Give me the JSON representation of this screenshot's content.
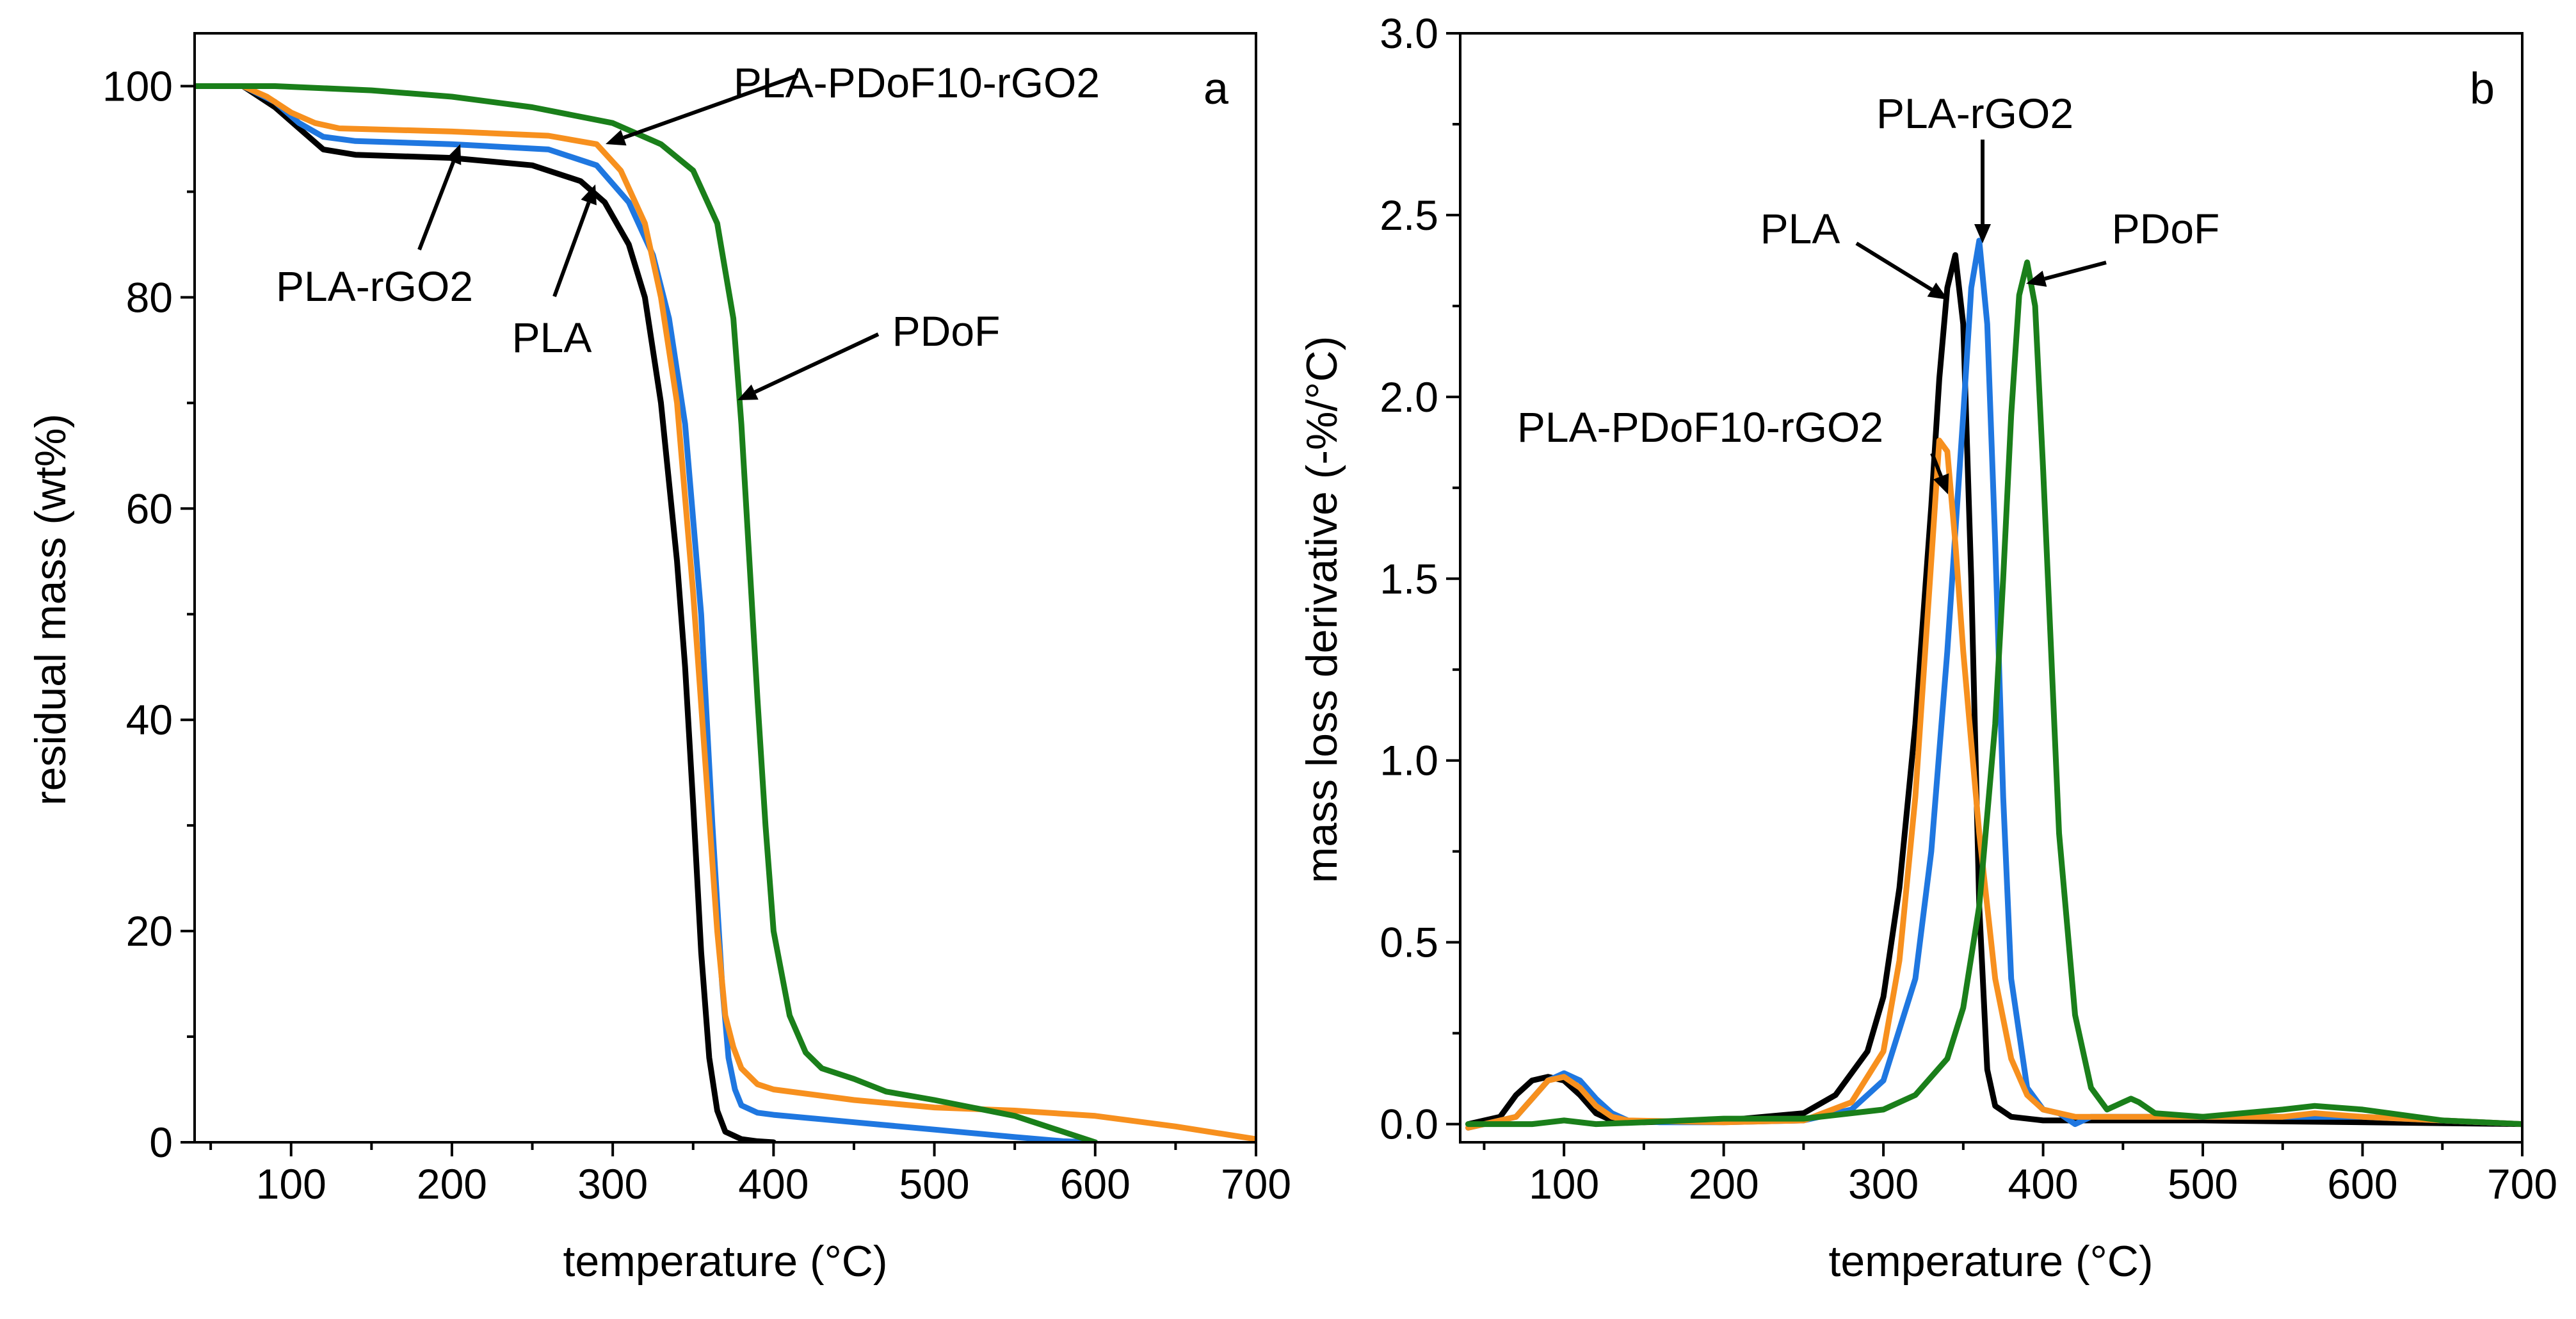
{
  "colors": {
    "PLA": "#000000",
    "PLA-rGO2": "#1f77e0",
    "PLA-PDoF10-rGO2": "#f7901e",
    "PDoF": "#1a7f1a"
  },
  "chart_data": [
    {
      "type": "line",
      "panel": "a",
      "title": "",
      "xlabel": "temperature (°C)",
      "ylabel": "residual mass (wt%)",
      "xlim": [
        40,
        700
      ],
      "ylim": [
        0,
        105
      ],
      "xticks": [
        100,
        200,
        300,
        400,
        500,
        600,
        700
      ],
      "yticks": [
        0,
        20,
        40,
        60,
        80,
        100
      ],
      "xtick_labels": [
        "100",
        "200",
        "300",
        "400",
        "500",
        "600",
        "700"
      ],
      "ytick_labels": [
        "0",
        "20",
        "40",
        "60",
        "80",
        "100"
      ],
      "series": [
        {
          "name": "PLA",
          "color": "#000000",
          "x": [
            40,
            70,
            90,
            105,
            120,
            140,
            200,
            250,
            280,
            295,
            310,
            320,
            330,
            340,
            345,
            350,
            355,
            360,
            365,
            370,
            380,
            390,
            400
          ],
          "y": [
            100,
            100,
            98,
            96,
            94,
            93.5,
            93.2,
            92.5,
            91,
            89,
            85,
            80,
            70,
            55,
            45,
            32,
            18,
            8,
            3,
            1,
            0.3,
            0.1,
            0
          ]
        },
        {
          "name": "PLA-rGO2",
          "color": "#1f77e0",
          "x": [
            40,
            70,
            90,
            105,
            120,
            140,
            200,
            260,
            290,
            310,
            325,
            335,
            345,
            355,
            362,
            368,
            372,
            376,
            380,
            390,
            400,
            450,
            500,
            550,
            580,
            600
          ],
          "y": [
            100,
            100,
            98.5,
            96.5,
            95.2,
            94.8,
            94.5,
            94,
            92.5,
            89,
            84,
            78,
            68,
            50,
            30,
            15,
            8,
            5,
            3.5,
            2.8,
            2.6,
            1.9,
            1.2,
            0.5,
            0.1,
            0
          ]
        },
        {
          "name": "PLA-PDoF10-rGO2",
          "color": "#f7901e",
          "x": [
            40,
            70,
            85,
            100,
            115,
            130,
            200,
            260,
            290,
            305,
            320,
            330,
            340,
            350,
            358,
            365,
            370,
            375,
            380,
            390,
            400,
            450,
            500,
            550,
            600,
            650,
            700
          ],
          "y": [
            100,
            100,
            99,
            97.5,
            96.5,
            96,
            95.7,
            95.3,
            94.5,
            92,
            87,
            80,
            70,
            52,
            35,
            20,
            12,
            9,
            7,
            5.5,
            5,
            4,
            3.3,
            3,
            2.5,
            1.5,
            0.3
          ]
        },
        {
          "name": "PDoF",
          "color": "#1a7f1a",
          "x": [
            40,
            90,
            150,
            200,
            250,
            300,
            330,
            350,
            365,
            375,
            380,
            385,
            390,
            395,
            400,
            410,
            420,
            430,
            450,
            470,
            500,
            550,
            580,
            600
          ],
          "y": [
            100,
            100,
            99.6,
            99,
            98,
            96.5,
            94.5,
            92,
            87,
            78,
            68,
            55,
            42,
            30,
            20,
            12,
            8.5,
            7,
            6,
            4.8,
            4,
            2.5,
            1,
            0
          ]
        }
      ],
      "annotations": [
        {
          "text": "PLA-PDoF10-rGO2",
          "x": 460,
          "y": 101.5
        },
        {
          "text": "PLA-rGO2",
          "x": 170,
          "y": 79
        },
        {
          "text": "PLA",
          "x": 320,
          "y": 76
        },
        {
          "text": "PDoF",
          "x": 555,
          "y": 76
        }
      ],
      "panel_letter": "a"
    },
    {
      "type": "line",
      "panel": "b",
      "title": "",
      "xlabel": "temperature (°C)",
      "ylabel": "mass loss derivative (-%/°C)",
      "xlim": [
        35,
        700
      ],
      "ylim": [
        -0.05,
        3.0
      ],
      "xticks": [
        100,
        200,
        300,
        400,
        500,
        600,
        700
      ],
      "yticks": [
        0.0,
        0.5,
        1.0,
        1.5,
        2.0,
        2.5,
        3.0
      ],
      "xtick_labels": [
        "100",
        "200",
        "300",
        "400",
        "500",
        "600",
        "700"
      ],
      "ytick_labels": [
        "0.0",
        "0.5",
        "1.0",
        "1.5",
        "2.0",
        "2.5",
        "3.0"
      ],
      "series": [
        {
          "name": "PLA",
          "color": "#000000",
          "x": [
            40,
            60,
            70,
            80,
            90,
            100,
            110,
            120,
            130,
            150,
            200,
            250,
            270,
            290,
            300,
            310,
            320,
            330,
            335,
            340,
            345,
            350,
            355,
            360,
            365,
            370,
            380,
            400,
            500,
            700
          ],
          "y": [
            0,
            0.02,
            0.08,
            0.12,
            0.13,
            0.12,
            0.08,
            0.03,
            0.01,
            0.005,
            0.01,
            0.03,
            0.08,
            0.2,
            0.35,
            0.65,
            1.1,
            1.7,
            2.05,
            2.3,
            2.39,
            2.2,
            1.5,
            0.6,
            0.15,
            0.05,
            0.02,
            0.01,
            0.01,
            0.0
          ]
        },
        {
          "name": "PLA-rGO2",
          "color": "#1f77e0",
          "x": [
            40,
            70,
            80,
            90,
            100,
            110,
            120,
            130,
            140,
            160,
            200,
            250,
            280,
            300,
            320,
            330,
            340,
            350,
            355,
            360,
            365,
            370,
            375,
            380,
            390,
            400,
            410,
            420,
            430,
            450,
            500,
            550,
            600,
            700
          ],
          "y": [
            -0.01,
            0.02,
            0.07,
            0.12,
            0.14,
            0.12,
            0.07,
            0.03,
            0.01,
            0.005,
            0.005,
            0.01,
            0.04,
            0.12,
            0.4,
            0.75,
            1.3,
            1.95,
            2.3,
            2.43,
            2.2,
            1.6,
            0.9,
            0.4,
            0.1,
            0.04,
            0.03,
            0.0,
            0.02,
            0.02,
            0.02,
            0.02,
            0.02,
            0.0
          ]
        },
        {
          "name": "PLA-PDoF10-rGO2",
          "color": "#f7901e",
          "x": [
            40,
            70,
            80,
            90,
            100,
            110,
            120,
            130,
            140,
            200,
            250,
            280,
            300,
            310,
            320,
            330,
            335,
            340,
            345,
            350,
            360,
            370,
            380,
            390,
            400,
            420,
            450,
            500,
            550,
            570,
            600,
            650,
            700
          ],
          "y": [
            -0.01,
            0.02,
            0.07,
            0.12,
            0.13,
            0.1,
            0.05,
            0.02,
            0.01,
            0.005,
            0.01,
            0.06,
            0.2,
            0.45,
            0.9,
            1.55,
            1.88,
            1.85,
            1.6,
            1.3,
            0.8,
            0.4,
            0.18,
            0.08,
            0.04,
            0.02,
            0.02,
            0.02,
            0.02,
            0.03,
            0.02,
            0.01,
            0.0
          ]
        },
        {
          "name": "PDoF",
          "color": "#1a7f1a",
          "x": [
            40,
            80,
            100,
            120,
            150,
            200,
            250,
            300,
            320,
            340,
            350,
            360,
            370,
            375,
            380,
            385,
            390,
            395,
            400,
            405,
            410,
            420,
            430,
            440,
            450,
            455,
            460,
            470,
            500,
            550,
            570,
            600,
            650,
            700
          ],
          "y": [
            0,
            0.0,
            0.01,
            0.0,
            0.005,
            0.015,
            0.015,
            0.04,
            0.08,
            0.18,
            0.32,
            0.6,
            1.1,
            1.5,
            1.95,
            2.28,
            2.37,
            2.25,
            1.8,
            1.3,
            0.8,
            0.3,
            0.1,
            0.04,
            0.06,
            0.07,
            0.06,
            0.03,
            0.02,
            0.04,
            0.05,
            0.04,
            0.01,
            0.0
          ]
        }
      ],
      "annotations": [
        {
          "text": "PLA-rGO2",
          "x": 360,
          "y": 2.71
        },
        {
          "text": "PLA",
          "x": 302,
          "y": 2.37
        },
        {
          "text": "PDoF",
          "x": 433,
          "y": 2.37
        },
        {
          "text": "PLA-PDoF10-rGO2",
          "x": 247,
          "y": 1.91
        }
      ],
      "panel_letter": "b"
    }
  ]
}
